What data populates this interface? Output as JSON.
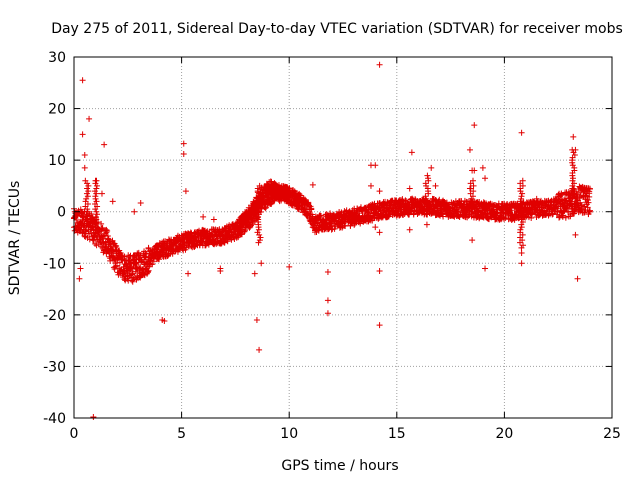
{
  "chart_data": {
    "type": "scatter",
    "title": "Day 275 of 2011, Sidereal Day-to-day VTEC variation (SDTVAR) for receiver mobs",
    "xlabel": "GPS time / hours",
    "ylabel": "SDTVAR / TECUs",
    "xlim": [
      0,
      25
    ],
    "ylim": [
      -40,
      30
    ],
    "xticks": [
      0,
      5,
      10,
      15,
      20,
      25
    ],
    "yticks": [
      -40,
      -30,
      -20,
      -10,
      0,
      10,
      20,
      30
    ],
    "grid": true,
    "marker": "+",
    "color": "#e00000",
    "series": [
      {
        "name": "SDTVAR",
        "band_trend": [
          [
            0.0,
            -2.0
          ],
          [
            0.4,
            -2.0
          ],
          [
            0.8,
            -3.0
          ],
          [
            1.2,
            -4.5
          ],
          [
            1.6,
            -6.5
          ],
          [
            2.0,
            -9.5
          ],
          [
            2.4,
            -11.0
          ],
          [
            2.8,
            -11.0
          ],
          [
            3.4,
            -9.5
          ],
          [
            4.0,
            -7.5
          ],
          [
            5.0,
            -6.0
          ],
          [
            6.0,
            -5.0
          ],
          [
            7.0,
            -4.5
          ],
          [
            7.6,
            -3.5
          ],
          [
            8.2,
            -1.5
          ],
          [
            8.8,
            2.0
          ],
          [
            9.3,
            3.5
          ],
          [
            9.8,
            3.5
          ],
          [
            10.3,
            2.5
          ],
          [
            10.9,
            0.5
          ],
          [
            11.2,
            -2.5
          ],
          [
            11.8,
            -2.0
          ],
          [
            12.5,
            -1.5
          ],
          [
            13.5,
            -0.5
          ],
          [
            14.5,
            0.5
          ],
          [
            15.5,
            1.0
          ],
          [
            16.5,
            1.0
          ],
          [
            17.5,
            0.5
          ],
          [
            18.5,
            0.5
          ],
          [
            19.5,
            0.0
          ],
          [
            20.5,
            0.0
          ],
          [
            21.5,
            0.5
          ],
          [
            22.5,
            1.0
          ],
          [
            23.0,
            1.5
          ],
          [
            23.5,
            2.5
          ],
          [
            24.0,
            2.0
          ]
        ],
        "secondary_trend": [
          [
            7.6,
            -3.0
          ],
          [
            8.2,
            0.0
          ],
          [
            8.6,
            3.0
          ],
          [
            9.0,
            5.0
          ],
          [
            9.5,
            4.0
          ],
          [
            10.0,
            3.5
          ]
        ],
        "outliers": [
          [
            0.4,
            25.5
          ],
          [
            0.7,
            18.0
          ],
          [
            1.4,
            13.0
          ],
          [
            0.4,
            15.0
          ],
          [
            0.5,
            11.0
          ],
          [
            0.5,
            8.5
          ],
          [
            0.3,
            -11.0
          ],
          [
            0.25,
            -13.0
          ],
          [
            0.9,
            -39.8
          ],
          [
            1.0,
            6.0
          ],
          [
            1.3,
            3.5
          ],
          [
            1.8,
            2.0
          ],
          [
            2.8,
            0.0
          ],
          [
            3.1,
            1.7
          ],
          [
            2.7,
            -12.8
          ],
          [
            4.1,
            -21.0
          ],
          [
            4.2,
            -21.2
          ],
          [
            5.1,
            13.2
          ],
          [
            5.1,
            11.2
          ],
          [
            5.2,
            4.0
          ],
          [
            5.3,
            -12.0
          ],
          [
            6.0,
            -1.0
          ],
          [
            6.5,
            -1.5
          ],
          [
            6.8,
            -11.0
          ],
          [
            6.8,
            -11.5
          ],
          [
            8.5,
            -21.0
          ],
          [
            8.6,
            -26.8
          ],
          [
            8.7,
            -10.0
          ],
          [
            8.4,
            -12.0
          ],
          [
            10.0,
            -10.7
          ],
          [
            10.3,
            3.5
          ],
          [
            11.1,
            5.2
          ],
          [
            11.8,
            -11.7
          ],
          [
            11.8,
            -17.2
          ],
          [
            11.8,
            -19.7
          ],
          [
            12.5,
            -1.0
          ],
          [
            13.8,
            9.0
          ],
          [
            14.0,
            9.0
          ],
          [
            13.8,
            5.0
          ],
          [
            14.2,
            4.0
          ],
          [
            14.2,
            -4.0
          ],
          [
            14.2,
            -11.5
          ],
          [
            14.2,
            -22.0
          ],
          [
            14.2,
            28.5
          ],
          [
            14.0,
            -3.0
          ],
          [
            15.7,
            11.5
          ],
          [
            15.6,
            4.5
          ],
          [
            15.6,
            -3.5
          ],
          [
            16.4,
            -2.5
          ],
          [
            16.6,
            8.5
          ],
          [
            16.8,
            5.0
          ],
          [
            18.0,
            2.0
          ],
          [
            18.4,
            12.0
          ],
          [
            18.5,
            8.0
          ],
          [
            18.6,
            8.0
          ],
          [
            18.5,
            -5.5
          ],
          [
            18.6,
            16.8
          ],
          [
            19.0,
            8.5
          ],
          [
            19.1,
            6.5
          ],
          [
            19.1,
            -11.0
          ],
          [
            18.4,
            4.5
          ],
          [
            20.8,
            15.3
          ],
          [
            20.8,
            -8.0
          ],
          [
            20.8,
            -10.0
          ],
          [
            21.5,
            2.5
          ],
          [
            23.2,
            14.5
          ],
          [
            23.3,
            -4.5
          ],
          [
            23.4,
            -13.0
          ],
          [
            23.3,
            12.0
          ]
        ]
      }
    ]
  }
}
